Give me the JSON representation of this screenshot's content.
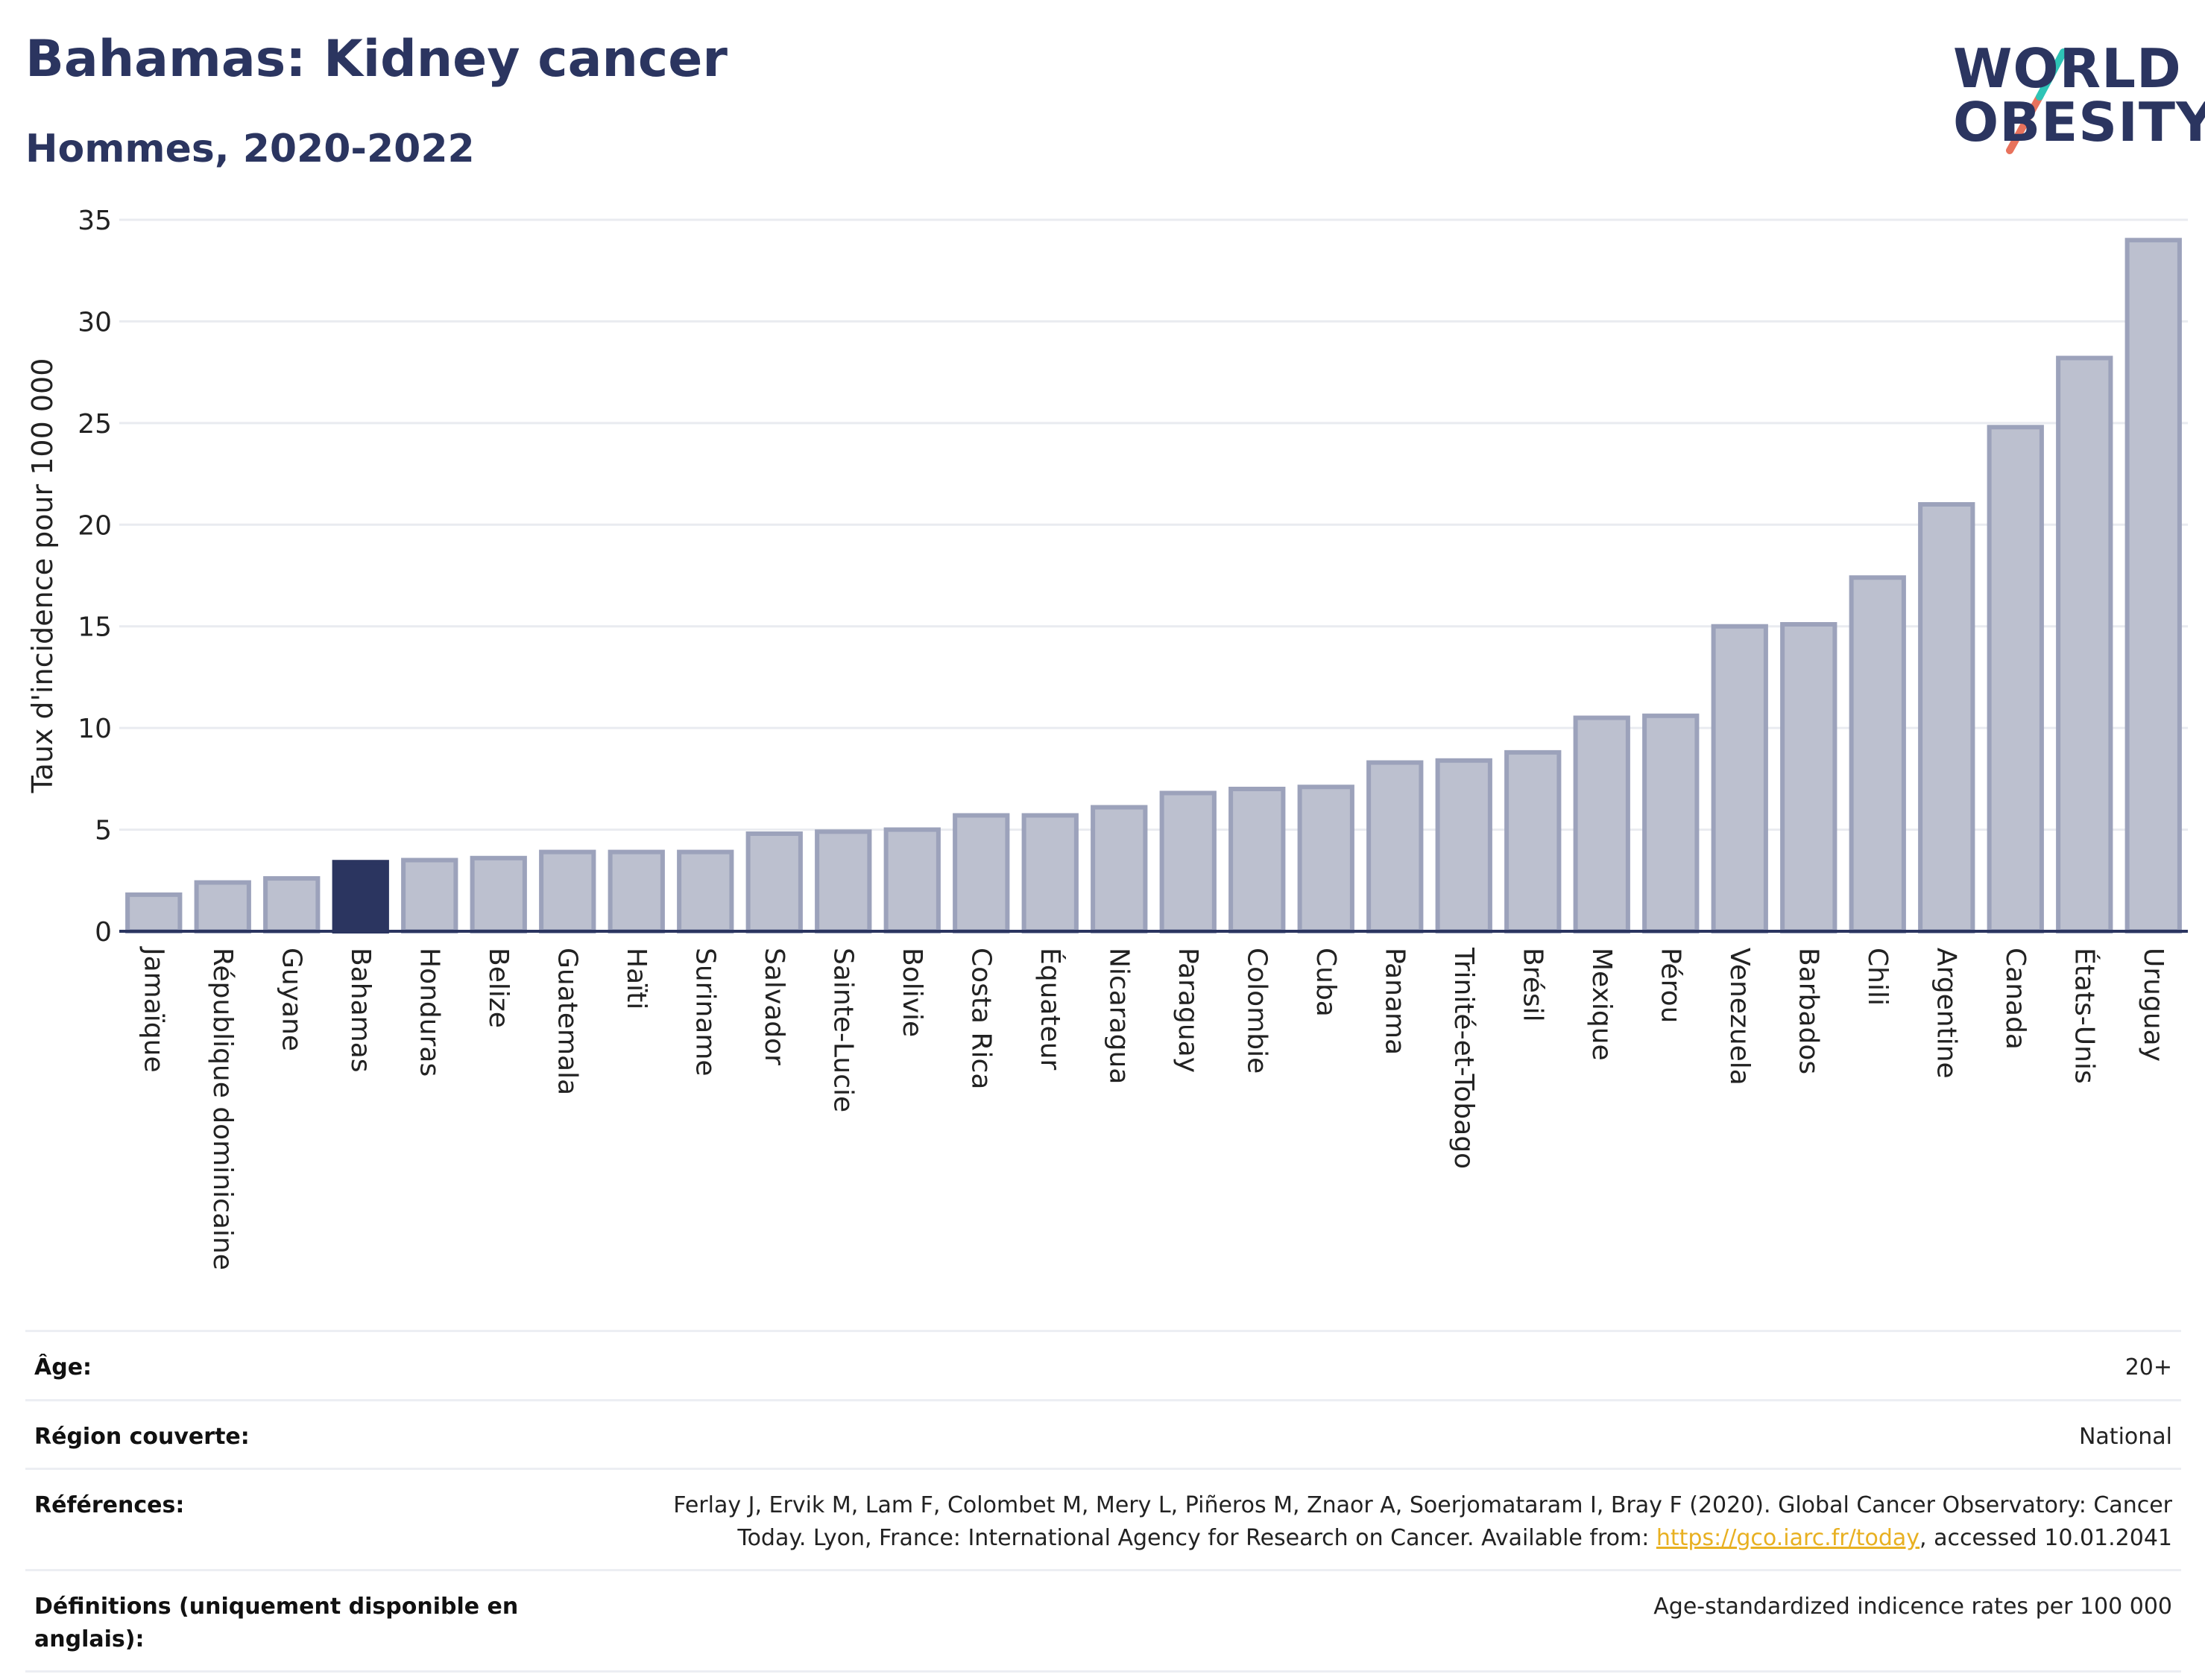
{
  "title": "Bahamas: Kidney cancer",
  "subtitle": "Hommes, 2020-2022",
  "logo": {
    "line1": "WORLD",
    "line2": "OBESITY"
  },
  "colors": {
    "title": "#2b3560",
    "bar": "#bcc0cf",
    "bar_border": "#9ca2bb",
    "highlight": "#2b3560",
    "grid": "#e9ebf0",
    "link": "#e8b021",
    "logo_teal": "#2ec4b6",
    "logo_coral": "#e8725c"
  },
  "chart_data": {
    "type": "bar",
    "ylabel": "Taux d'incidence pour 100 000",
    "ylim": [
      0,
      35
    ],
    "yticks": [
      0,
      5,
      10,
      15,
      20,
      25,
      30,
      35
    ],
    "grid": true,
    "highlight": "Bahamas",
    "categories": [
      "Jamaïque",
      "République dominicaine",
      "Guyane",
      "Bahamas",
      "Honduras",
      "Belize",
      "Guatemala",
      "Haïti",
      "Suriname",
      "Salvador",
      "Sainte-Lucie",
      "Bolivie",
      "Costa Rica",
      "Équateur",
      "Nicaragua",
      "Paraguay",
      "Colombie",
      "Cuba",
      "Panama",
      "Trinité-et-Tobago",
      "Brésil",
      "Mexique",
      "Pérou",
      "Venezuela",
      "Barbados",
      "Chili",
      "Argentine",
      "Canada",
      "États-Unis",
      "Uruguay"
    ],
    "values": [
      1.8,
      2.4,
      2.6,
      3.4,
      3.5,
      3.6,
      3.9,
      3.9,
      3.9,
      4.8,
      4.9,
      5.0,
      5.7,
      5.7,
      6.1,
      6.8,
      7.0,
      7.1,
      8.3,
      8.4,
      8.8,
      10.5,
      10.6,
      15.0,
      15.1,
      17.4,
      21.0,
      24.8,
      28.2,
      34.0
    ]
  },
  "info": {
    "age_label": "Âge:",
    "age_value": "20+",
    "region_label": "Région couverte:",
    "region_value": "National",
    "refs_label": "Références:",
    "refs_text_1": "Ferlay J, Ervik M, Lam F, Colombet M, Mery L, Piñeros M, Znaor A, Soerjomataram I, Bray F (2020). Global Cancer Observatory: Cancer Today. Lyon, France: International Agency for Research on Cancer. Available from: ",
    "refs_link": "https://gco.iarc.fr/today",
    "refs_text_2": ", accessed 10.01.2041",
    "defs_label": "Définitions (uniquement disponible en anglais):",
    "defs_value": "Age-standardized indicence rates per 100 000"
  }
}
